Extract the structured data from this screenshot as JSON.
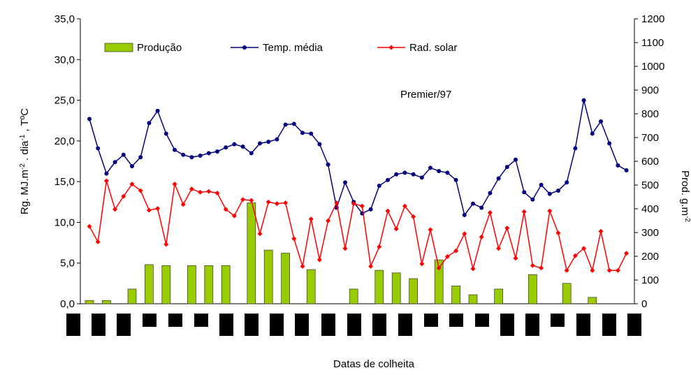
{
  "chart_data": {
    "type": "combo",
    "y_label_parts": [
      "Rg. MJ.m",
      "-2",
      " . dia",
      "-1",
      " ,  TºC"
    ],
    "y2_label_parts": [
      "Prod. g.m",
      "-2"
    ],
    "x_label": "Datas de colheita",
    "annotation": "Premier/97",
    "categories": [
      null,
      null,
      null,
      null,
      null,
      null,
      null,
      null,
      null,
      null,
      null,
      null,
      null,
      null,
      null,
      null,
      null,
      null,
      null,
      null,
      null,
      null,
      null,
      null,
      null,
      null,
      null,
      null,
      null,
      null,
      null,
      null,
      null,
      null,
      null,
      null,
      null,
      null,
      null,
      null,
      null,
      null,
      null,
      null,
      null,
      null,
      null,
      null,
      null,
      null,
      null,
      null,
      null,
      null,
      null,
      null,
      null,
      null,
      null,
      null,
      null,
      null,
      null,
      null
    ],
    "ylim": [
      0,
      35
    ],
    "yticks": [
      {
        "value": 0,
        "label": "0,0"
      },
      {
        "value": 5,
        "label": "5,0"
      },
      {
        "value": 10,
        "label": "10,0"
      },
      {
        "value": 15,
        "label": "15,0"
      },
      {
        "value": 20,
        "label": "20,0"
      },
      {
        "value": 25,
        "label": "25,0"
      },
      {
        "value": 30,
        "label": "30,0"
      },
      {
        "value": 35,
        "label": "35,0"
      }
    ],
    "y2lim": [
      0,
      1200
    ],
    "y2ticks": [
      0,
      100,
      200,
      300,
      400,
      500,
      600,
      700,
      800,
      900,
      1000,
      1100,
      1200
    ],
    "series": [
      {
        "name": "Produção",
        "type": "bar",
        "axis": "y2",
        "color": "#99cc00",
        "values": [
          14,
          null,
          14,
          null,
          null,
          62,
          null,
          165,
          null,
          161,
          null,
          null,
          161,
          null,
          161,
          null,
          161,
          null,
          null,
          425,
          null,
          226,
          null,
          213,
          null,
          null,
          144,
          null,
          null,
          null,
          null,
          62,
          null,
          null,
          141,
          null,
          130,
          null,
          106,
          null,
          null,
          185,
          null,
          75,
          null,
          38,
          null,
          null,
          62,
          null,
          null,
          null,
          123,
          null,
          null,
          null,
          86,
          null,
          null,
          27,
          null,
          null,
          null,
          null
        ]
      },
      {
        "name": "Temp. média",
        "type": "line",
        "marker": "circle",
        "color": "#000080",
        "values": [
          22.7,
          19.1,
          16.0,
          17.4,
          18.3,
          16.9,
          18.0,
          22.2,
          23.7,
          20.9,
          18.9,
          18.3,
          18.0,
          18.2,
          18.5,
          18.7,
          19.2,
          19.6,
          19.3,
          18.5,
          19.7,
          19.9,
          20.2,
          22.0,
          22.1,
          21.0,
          20.9,
          19.6,
          17.1,
          11.8,
          14.9,
          12.5,
          11.1,
          11.6,
          14.5,
          15.2,
          15.9,
          16.1,
          15.9,
          15.5,
          16.7,
          16.3,
          16.1,
          15.2,
          10.9,
          12.3,
          11.8,
          13.6,
          15.4,
          16.8,
          17.7,
          13.7,
          12.8,
          14.6,
          13.5,
          13.9,
          14.9,
          19.1,
          25.0,
          20.9,
          22.4,
          19.7,
          17.0,
          16.4
        ]
      },
      {
        "name": "Rad. solar",
        "type": "line",
        "marker": "diamond",
        "color": "#ff0000",
        "values": [
          9.5,
          7.6,
          15.1,
          11.6,
          13.2,
          14.7,
          13.9,
          11.5,
          11.7,
          7.3,
          14.7,
          12.2,
          14.1,
          13.7,
          13.8,
          13.6,
          11.6,
          10.8,
          12.8,
          12.7,
          8.6,
          12.5,
          12.3,
          12.4,
          8.0,
          4.6,
          10.4,
          5.4,
          10.2,
          12.4,
          6.8,
          12.3,
          12.0,
          4.6,
          7.0,
          11.4,
          9.2,
          12.0,
          10.7,
          4.9,
          9.1,
          4.4,
          5.8,
          6.5,
          8.6,
          4.3,
          8.2,
          11.2,
          6.8,
          9.3,
          5.6,
          11.3,
          4.7,
          4.4,
          11.4,
          8.7,
          4.1,
          5.9,
          6.8,
          4.1,
          8.9,
          4.1,
          4.1,
          6.2
        ]
      }
    ]
  }
}
